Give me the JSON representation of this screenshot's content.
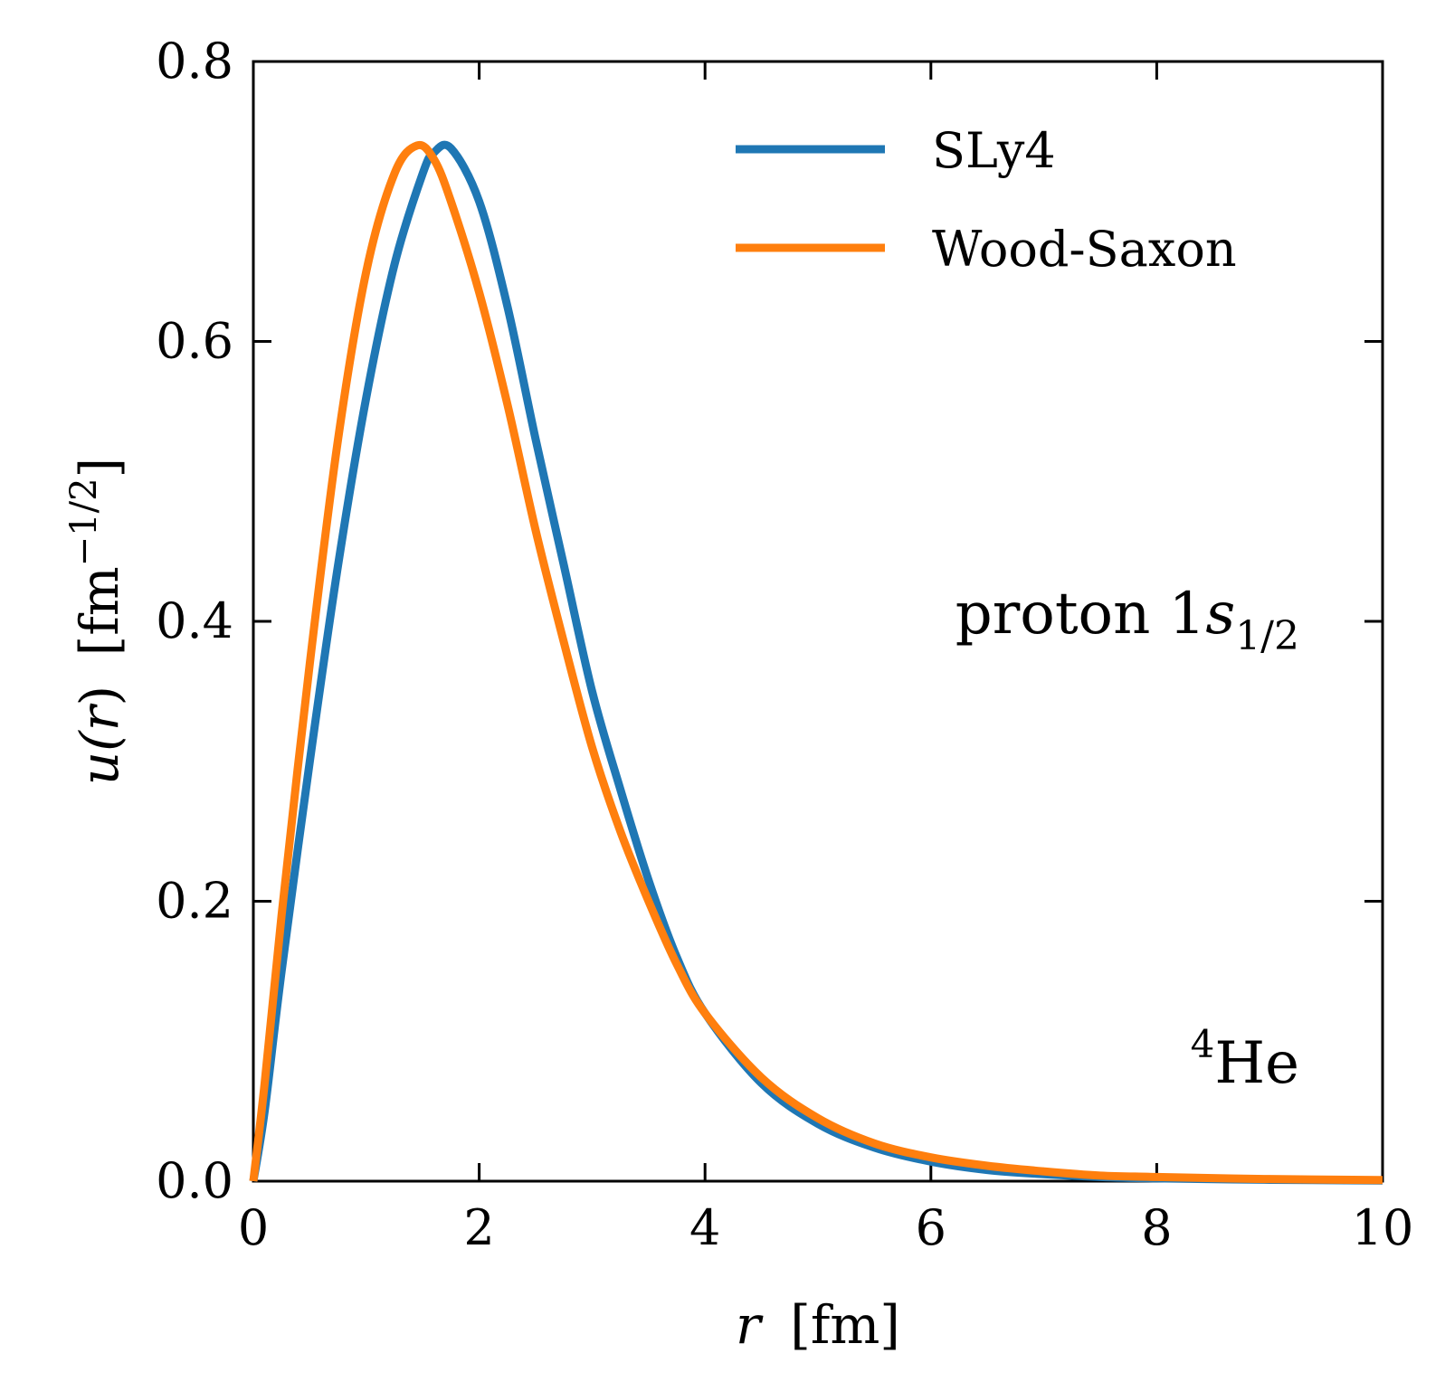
{
  "chart_data": {
    "type": "line",
    "xlabel": {
      "var": "r",
      "unit": "[fm]"
    },
    "ylabel": {
      "prefix": "u(",
      "var": "r",
      "suffix": ")",
      "unit": "[fm",
      "exp": "−1/2",
      "close": "]"
    },
    "xlim": [
      0,
      10
    ],
    "ylim": [
      0,
      0.8
    ],
    "x_ticks": [
      0,
      2,
      4,
      6,
      8,
      10
    ],
    "y_ticks": [
      0.0,
      0.2,
      0.4,
      0.6,
      0.8
    ],
    "x_tick_labels": [
      "0",
      "2",
      "4",
      "6",
      "8",
      "10"
    ],
    "y_tick_labels": [
      "0.0",
      "0.2",
      "0.4",
      "0.6",
      "0.8"
    ],
    "grid": false,
    "legend_position": "top-right",
    "annotations": {
      "state": {
        "text": "proton 1",
        "var": "s",
        "sub": "1/2"
      },
      "nucleus": {
        "sup": "4",
        "text": "He"
      }
    },
    "series": [
      {
        "name": "SLy4",
        "color": "#1f77b4",
        "points": [
          [
            0,
            0
          ],
          [
            0.1,
            0.05
          ],
          [
            0.25,
            0.15
          ],
          [
            0.5,
            0.3
          ],
          [
            0.75,
            0.44
          ],
          [
            1.0,
            0.56
          ],
          [
            1.25,
            0.655
          ],
          [
            1.5,
            0.72
          ],
          [
            1.6,
            0.735
          ],
          [
            1.75,
            0.738
          ],
          [
            2.0,
            0.7
          ],
          [
            2.25,
            0.625
          ],
          [
            2.5,
            0.53
          ],
          [
            2.75,
            0.44
          ],
          [
            3.0,
            0.35
          ],
          [
            3.25,
            0.28
          ],
          [
            3.5,
            0.215
          ],
          [
            3.75,
            0.16
          ],
          [
            4.0,
            0.12
          ],
          [
            4.5,
            0.07
          ],
          [
            5.0,
            0.041
          ],
          [
            5.5,
            0.024
          ],
          [
            6.0,
            0.014
          ],
          [
            6.5,
            0.008
          ],
          [
            7.0,
            0.005
          ],
          [
            7.5,
            0.003
          ],
          [
            8.0,
            0.002
          ],
          [
            9.0,
            0.001
          ],
          [
            10.0,
            0.0005
          ]
        ]
      },
      {
        "name": "Wood-Saxon",
        "color": "#ff7f0e",
        "points": [
          [
            0,
            0
          ],
          [
            0.1,
            0.07
          ],
          [
            0.25,
            0.19
          ],
          [
            0.5,
            0.37
          ],
          [
            0.75,
            0.53
          ],
          [
            1.0,
            0.65
          ],
          [
            1.25,
            0.72
          ],
          [
            1.45,
            0.74
          ],
          [
            1.6,
            0.73
          ],
          [
            1.75,
            0.7
          ],
          [
            2.0,
            0.635
          ],
          [
            2.25,
            0.555
          ],
          [
            2.5,
            0.465
          ],
          [
            2.75,
            0.385
          ],
          [
            3.0,
            0.31
          ],
          [
            3.25,
            0.25
          ],
          [
            3.5,
            0.2
          ],
          [
            3.75,
            0.155
          ],
          [
            4.0,
            0.12
          ],
          [
            4.5,
            0.074
          ],
          [
            5.0,
            0.045
          ],
          [
            5.5,
            0.027
          ],
          [
            6.0,
            0.017
          ],
          [
            6.5,
            0.011
          ],
          [
            7.0,
            0.007
          ],
          [
            7.5,
            0.004
          ],
          [
            8.0,
            0.003
          ],
          [
            9.0,
            0.0015
          ],
          [
            10.0,
            0.0008
          ]
        ]
      }
    ]
  }
}
